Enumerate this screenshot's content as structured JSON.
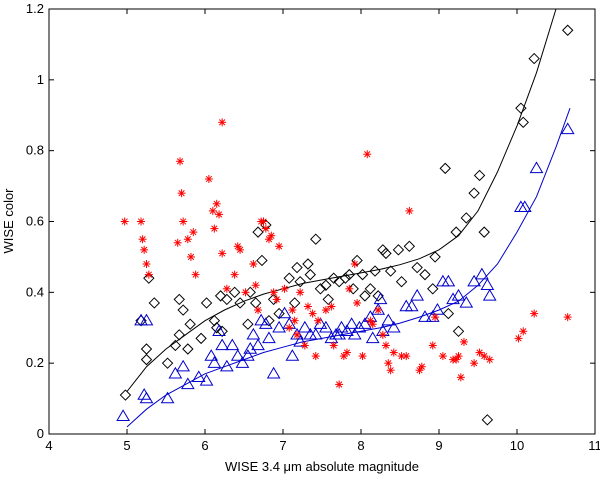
{
  "chart_data": {
    "type": "scatter",
    "title": "",
    "xlabel": "WISE 3.4 μm absolute magnitude",
    "ylabel": "WISE color",
    "xlim": [
      4,
      11
    ],
    "ylim": [
      0,
      1.2
    ],
    "grid": false,
    "x_ticks": [
      "4",
      "5",
      "6",
      "7",
      "8",
      "9",
      "10",
      "11"
    ],
    "y_ticks": [
      "0",
      "0.2",
      "0.4",
      "0.6",
      "0.8",
      "1",
      "1.2"
    ],
    "x_tick_values": [
      4,
      5,
      6,
      7,
      8,
      9,
      10,
      11
    ],
    "y_tick_values": [
      0,
      0.2,
      0.4,
      0.6,
      0.8,
      1.0,
      1.2
    ],
    "colors": {
      "diamond": "#000000",
      "triangle": "#0000cc",
      "star": "#ff0000"
    },
    "series": [
      {
        "name": "diamonds",
        "marker": "diamond",
        "color": "#000000",
        "points": [
          [
            4.98,
            0.11
          ],
          [
            5.18,
            0.32
          ],
          [
            5.25,
            0.21
          ],
          [
            5.25,
            0.24
          ],
          [
            5.28,
            0.44
          ],
          [
            5.35,
            0.37
          ],
          [
            5.52,
            0.2
          ],
          [
            5.62,
            0.25
          ],
          [
            5.67,
            0.28
          ],
          [
            5.67,
            0.38
          ],
          [
            5.72,
            0.35
          ],
          [
            5.78,
            0.24
          ],
          [
            5.81,
            0.31
          ],
          [
            5.95,
            0.27
          ],
          [
            6.02,
            0.37
          ],
          [
            6.12,
            0.32
          ],
          [
            6.15,
            0.3
          ],
          [
            6.2,
            0.39
          ],
          [
            6.22,
            0.29
          ],
          [
            6.28,
            0.38
          ],
          [
            6.38,
            0.4
          ],
          [
            6.45,
            0.37
          ],
          [
            6.55,
            0.31
          ],
          [
            6.58,
            0.4
          ],
          [
            6.65,
            0.37
          ],
          [
            6.68,
            0.57
          ],
          [
            6.73,
            0.49
          ],
          [
            6.78,
            0.59
          ],
          [
            6.82,
            0.32
          ],
          [
            6.88,
            0.38
          ],
          [
            6.95,
            0.34
          ],
          [
            7.08,
            0.44
          ],
          [
            7.15,
            0.37
          ],
          [
            7.18,
            0.47
          ],
          [
            7.22,
            0.43
          ],
          [
            7.32,
            0.48
          ],
          [
            7.35,
            0.45
          ],
          [
            7.42,
            0.55
          ],
          [
            7.48,
            0.41
          ],
          [
            7.55,
            0.42
          ],
          [
            7.58,
            0.38
          ],
          [
            7.65,
            0.44
          ],
          [
            7.72,
            0.43
          ],
          [
            7.8,
            0.44
          ],
          [
            7.85,
            0.45
          ],
          [
            7.9,
            0.41
          ],
          [
            7.95,
            0.49
          ],
          [
            8.02,
            0.45
          ],
          [
            8.05,
            0.39
          ],
          [
            8.12,
            0.41
          ],
          [
            8.18,
            0.46
          ],
          [
            8.22,
            0.39
          ],
          [
            8.28,
            0.52
          ],
          [
            8.32,
            0.51
          ],
          [
            8.38,
            0.46
          ],
          [
            8.48,
            0.52
          ],
          [
            8.52,
            0.43
          ],
          [
            8.62,
            0.53
          ],
          [
            8.72,
            0.47
          ],
          [
            8.82,
            0.45
          ],
          [
            8.92,
            0.41
          ],
          [
            8.95,
            0.5
          ],
          [
            9.08,
            0.75
          ],
          [
            9.12,
            0.34
          ],
          [
            9.22,
            0.57
          ],
          [
            9.25,
            0.29
          ],
          [
            9.35,
            0.61
          ],
          [
            9.45,
            0.68
          ],
          [
            9.52,
            0.73
          ],
          [
            9.58,
            0.57
          ],
          [
            9.62,
            0.04
          ],
          [
            10.05,
            0.92
          ],
          [
            10.08,
            0.88
          ],
          [
            10.22,
            1.06
          ],
          [
            10.65,
            1.14
          ]
        ]
      },
      {
        "name": "triangles",
        "marker": "triangle",
        "color": "#0000cc",
        "points": [
          [
            4.95,
            0.05
          ],
          [
            5.22,
            0.11
          ],
          [
            5.25,
            0.1
          ],
          [
            5.18,
            0.32
          ],
          [
            5.25,
            0.32
          ],
          [
            5.52,
            0.1
          ],
          [
            5.62,
            0.17
          ],
          [
            5.72,
            0.19
          ],
          [
            5.78,
            0.14
          ],
          [
            5.92,
            0.16
          ],
          [
            6.02,
            0.15
          ],
          [
            6.08,
            0.22
          ],
          [
            6.12,
            0.2
          ],
          [
            6.18,
            0.29
          ],
          [
            6.22,
            0.25
          ],
          [
            6.28,
            0.19
          ],
          [
            6.35,
            0.25
          ],
          [
            6.42,
            0.22
          ],
          [
            6.48,
            0.2
          ],
          [
            6.55,
            0.22
          ],
          [
            6.58,
            0.24
          ],
          [
            6.62,
            0.28
          ],
          [
            6.68,
            0.25
          ],
          [
            6.72,
            0.32
          ],
          [
            6.78,
            0.31
          ],
          [
            6.82,
            0.27
          ],
          [
            6.88,
            0.17
          ],
          [
            6.95,
            0.3
          ],
          [
            7.02,
            0.34
          ],
          [
            7.08,
            0.31
          ],
          [
            7.12,
            0.22
          ],
          [
            7.18,
            0.28
          ],
          [
            7.22,
            0.26
          ],
          [
            7.28,
            0.3
          ],
          [
            7.35,
            0.28
          ],
          [
            7.42,
            0.28
          ],
          [
            7.48,
            0.31
          ],
          [
            7.55,
            0.3
          ],
          [
            7.62,
            0.27
          ],
          [
            7.68,
            0.28
          ],
          [
            7.72,
            0.28
          ],
          [
            7.75,
            0.3
          ],
          [
            7.82,
            0.29
          ],
          [
            7.88,
            0.31
          ],
          [
            7.92,
            0.28
          ],
          [
            7.98,
            0.3
          ],
          [
            8.05,
            0.31
          ],
          [
            8.12,
            0.33
          ],
          [
            8.15,
            0.27
          ],
          [
            8.22,
            0.35
          ],
          [
            8.25,
            0.38
          ],
          [
            8.28,
            0.29
          ],
          [
            8.35,
            0.32
          ],
          [
            8.42,
            0.3
          ],
          [
            8.58,
            0.36
          ],
          [
            8.65,
            0.36
          ],
          [
            8.72,
            0.39
          ],
          [
            8.82,
            0.33
          ],
          [
            8.92,
            0.33
          ],
          [
            8.98,
            0.35
          ],
          [
            9.05,
            0.43
          ],
          [
            9.12,
            0.43
          ],
          [
            9.18,
            0.38
          ],
          [
            9.25,
            0.39
          ],
          [
            9.35,
            0.37
          ],
          [
            9.45,
            0.43
          ],
          [
            9.55,
            0.45
          ],
          [
            9.62,
            0.42
          ],
          [
            9.65,
            0.39
          ],
          [
            10.05,
            0.64
          ],
          [
            10.1,
            0.64
          ],
          [
            10.25,
            0.75
          ],
          [
            10.65,
            0.86
          ]
        ]
      },
      {
        "name": "stars",
        "marker": "star",
        "color": "#ff0000",
        "points": [
          [
            4.97,
            0.6
          ],
          [
            5.18,
            0.6
          ],
          [
            5.2,
            0.55
          ],
          [
            5.22,
            0.52
          ],
          [
            5.25,
            0.48
          ],
          [
            5.28,
            0.45
          ],
          [
            5.65,
            0.54
          ],
          [
            5.68,
            0.77
          ],
          [
            5.7,
            0.68
          ],
          [
            5.72,
            0.6
          ],
          [
            5.78,
            0.55
          ],
          [
            5.82,
            0.5
          ],
          [
            5.85,
            0.57
          ],
          [
            5.88,
            0.45
          ],
          [
            6.05,
            0.72
          ],
          [
            6.1,
            0.63
          ],
          [
            6.12,
            0.58
          ],
          [
            6.15,
            0.65
          ],
          [
            6.18,
            0.62
          ],
          [
            6.22,
            0.88
          ],
          [
            6.22,
            0.51
          ],
          [
            6.28,
            0.41
          ],
          [
            6.38,
            0.45
          ],
          [
            6.42,
            0.53
          ],
          [
            6.45,
            0.52
          ],
          [
            6.52,
            0.4
          ],
          [
            6.62,
            0.48
          ],
          [
            6.65,
            0.42
          ],
          [
            6.68,
            0.35
          ],
          [
            6.72,
            0.6
          ],
          [
            6.75,
            0.6
          ],
          [
            6.78,
            0.58
          ],
          [
            6.82,
            0.55
          ],
          [
            6.85,
            0.56
          ],
          [
            6.88,
            0.4
          ],
          [
            6.92,
            0.38
          ],
          [
            6.95,
            0.53
          ],
          [
            7.02,
            0.41
          ],
          [
            7.08,
            0.3
          ],
          [
            7.12,
            0.35
          ],
          [
            7.15,
            0.32
          ],
          [
            7.18,
            0.28
          ],
          [
            7.22,
            0.4
          ],
          [
            7.28,
            0.25
          ],
          [
            7.32,
            0.36
          ],
          [
            7.38,
            0.34
          ],
          [
            7.42,
            0.22
          ],
          [
            7.45,
            0.32
          ],
          [
            7.55,
            0.35
          ],
          [
            7.62,
            0.36
          ],
          [
            7.65,
            0.25
          ],
          [
            7.72,
            0.14
          ],
          [
            7.78,
            0.22
          ],
          [
            7.82,
            0.23
          ],
          [
            7.85,
            0.41
          ],
          [
            7.92,
            0.48
          ],
          [
            7.95,
            0.37
          ],
          [
            8.02,
            0.22
          ],
          [
            8.08,
            0.79
          ],
          [
            8.12,
            0.32
          ],
          [
            8.15,
            0.31
          ],
          [
            8.22,
            0.35
          ],
          [
            8.28,
            0.28
          ],
          [
            8.32,
            0.25
          ],
          [
            8.35,
            0.2
          ],
          [
            8.38,
            0.18
          ],
          [
            8.42,
            0.23
          ],
          [
            8.52,
            0.22
          ],
          [
            8.58,
            0.22
          ],
          [
            8.62,
            0.63
          ],
          [
            8.75,
            0.18
          ],
          [
            8.78,
            0.19
          ],
          [
            8.92,
            0.25
          ],
          [
            8.95,
            0.33
          ],
          [
            9.05,
            0.22
          ],
          [
            9.18,
            0.21
          ],
          [
            9.22,
            0.21
          ],
          [
            9.25,
            0.22
          ],
          [
            9.28,
            0.16
          ],
          [
            9.32,
            0.26
          ],
          [
            9.45,
            0.2
          ],
          [
            9.52,
            0.23
          ],
          [
            9.58,
            0.22
          ],
          [
            9.65,
            0.21
          ],
          [
            10.02,
            0.27
          ],
          [
            10.08,
            0.29
          ],
          [
            10.22,
            0.34
          ],
          [
            10.65,
            0.33
          ]
        ]
      }
    ],
    "curves": [
      {
        "name": "black-fit",
        "color": "#000000",
        "points": [
          [
            5.0,
            0.12
          ],
          [
            5.25,
            0.19
          ],
          [
            5.5,
            0.24
          ],
          [
            5.75,
            0.28
          ],
          [
            6.0,
            0.32
          ],
          [
            6.25,
            0.35
          ],
          [
            6.5,
            0.375
          ],
          [
            6.75,
            0.395
          ],
          [
            7.0,
            0.41
          ],
          [
            7.25,
            0.425
          ],
          [
            7.5,
            0.435
          ],
          [
            7.75,
            0.445
          ],
          [
            8.0,
            0.455
          ],
          [
            8.25,
            0.465
          ],
          [
            8.5,
            0.478
          ],
          [
            8.75,
            0.495
          ],
          [
            9.0,
            0.52
          ],
          [
            9.25,
            0.56
          ],
          [
            9.5,
            0.63
          ],
          [
            9.75,
            0.74
          ],
          [
            10.0,
            0.87
          ],
          [
            10.25,
            1.02
          ],
          [
            10.5,
            1.2
          ]
        ]
      },
      {
        "name": "blue-fit",
        "color": "#0000cc",
        "points": [
          [
            5.0,
            0.02
          ],
          [
            5.25,
            0.07
          ],
          [
            5.5,
            0.11
          ],
          [
            5.75,
            0.14
          ],
          [
            6.0,
            0.17
          ],
          [
            6.25,
            0.19
          ],
          [
            6.5,
            0.21
          ],
          [
            6.75,
            0.23
          ],
          [
            7.0,
            0.245
          ],
          [
            7.25,
            0.26
          ],
          [
            7.5,
            0.27
          ],
          [
            7.75,
            0.28
          ],
          [
            8.0,
            0.29
          ],
          [
            8.25,
            0.3
          ],
          [
            8.5,
            0.313
          ],
          [
            8.75,
            0.33
          ],
          [
            9.0,
            0.35
          ],
          [
            9.25,
            0.375
          ],
          [
            9.5,
            0.42
          ],
          [
            9.75,
            0.48
          ],
          [
            10.0,
            0.57
          ],
          [
            10.25,
            0.67
          ],
          [
            10.5,
            0.81
          ],
          [
            10.68,
            0.92
          ]
        ]
      }
    ]
  }
}
